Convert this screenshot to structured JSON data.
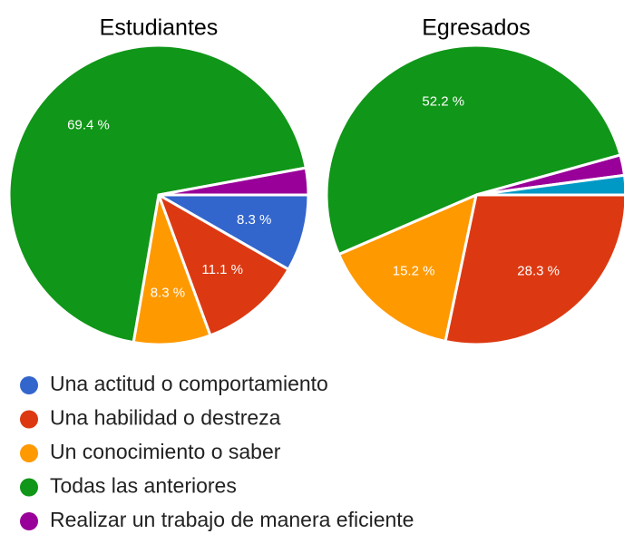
{
  "chart_data": [
    {
      "type": "pie",
      "title": "Estudiantes",
      "categories": [
        "Una actitud o comportamiento",
        "Una habilidad o destreza",
        "Un conocimiento o saber",
        "Todas las anteriores",
        "Realizar un trabajo de manera eficiente"
      ],
      "values": [
        8.3,
        11.1,
        8.3,
        69.4,
        2.9
      ],
      "value_labels": [
        "8.3 %",
        "11.1 %",
        "8.3 %",
        "69.4 %",
        null
      ],
      "colors": [
        "#3366cc",
        "#dc3912",
        "#ff9900",
        "#109618",
        "#990099"
      ]
    },
    {
      "type": "pie",
      "title": "Egresados",
      "categories": [
        "Una habilidad o destreza",
        "Un conocimiento o saber",
        "Todas las anteriores",
        "Realizar un trabajo de manera eficiente",
        null
      ],
      "values": [
        28.3,
        15.2,
        52.2,
        2.2,
        2.1
      ],
      "value_labels": [
        "28.3 %",
        "15.2 %",
        "52.2 %",
        null,
        null
      ],
      "colors": [
        "#dc3912",
        "#ff9900",
        "#109618",
        "#990099",
        "#0099c6"
      ]
    }
  ]
}
